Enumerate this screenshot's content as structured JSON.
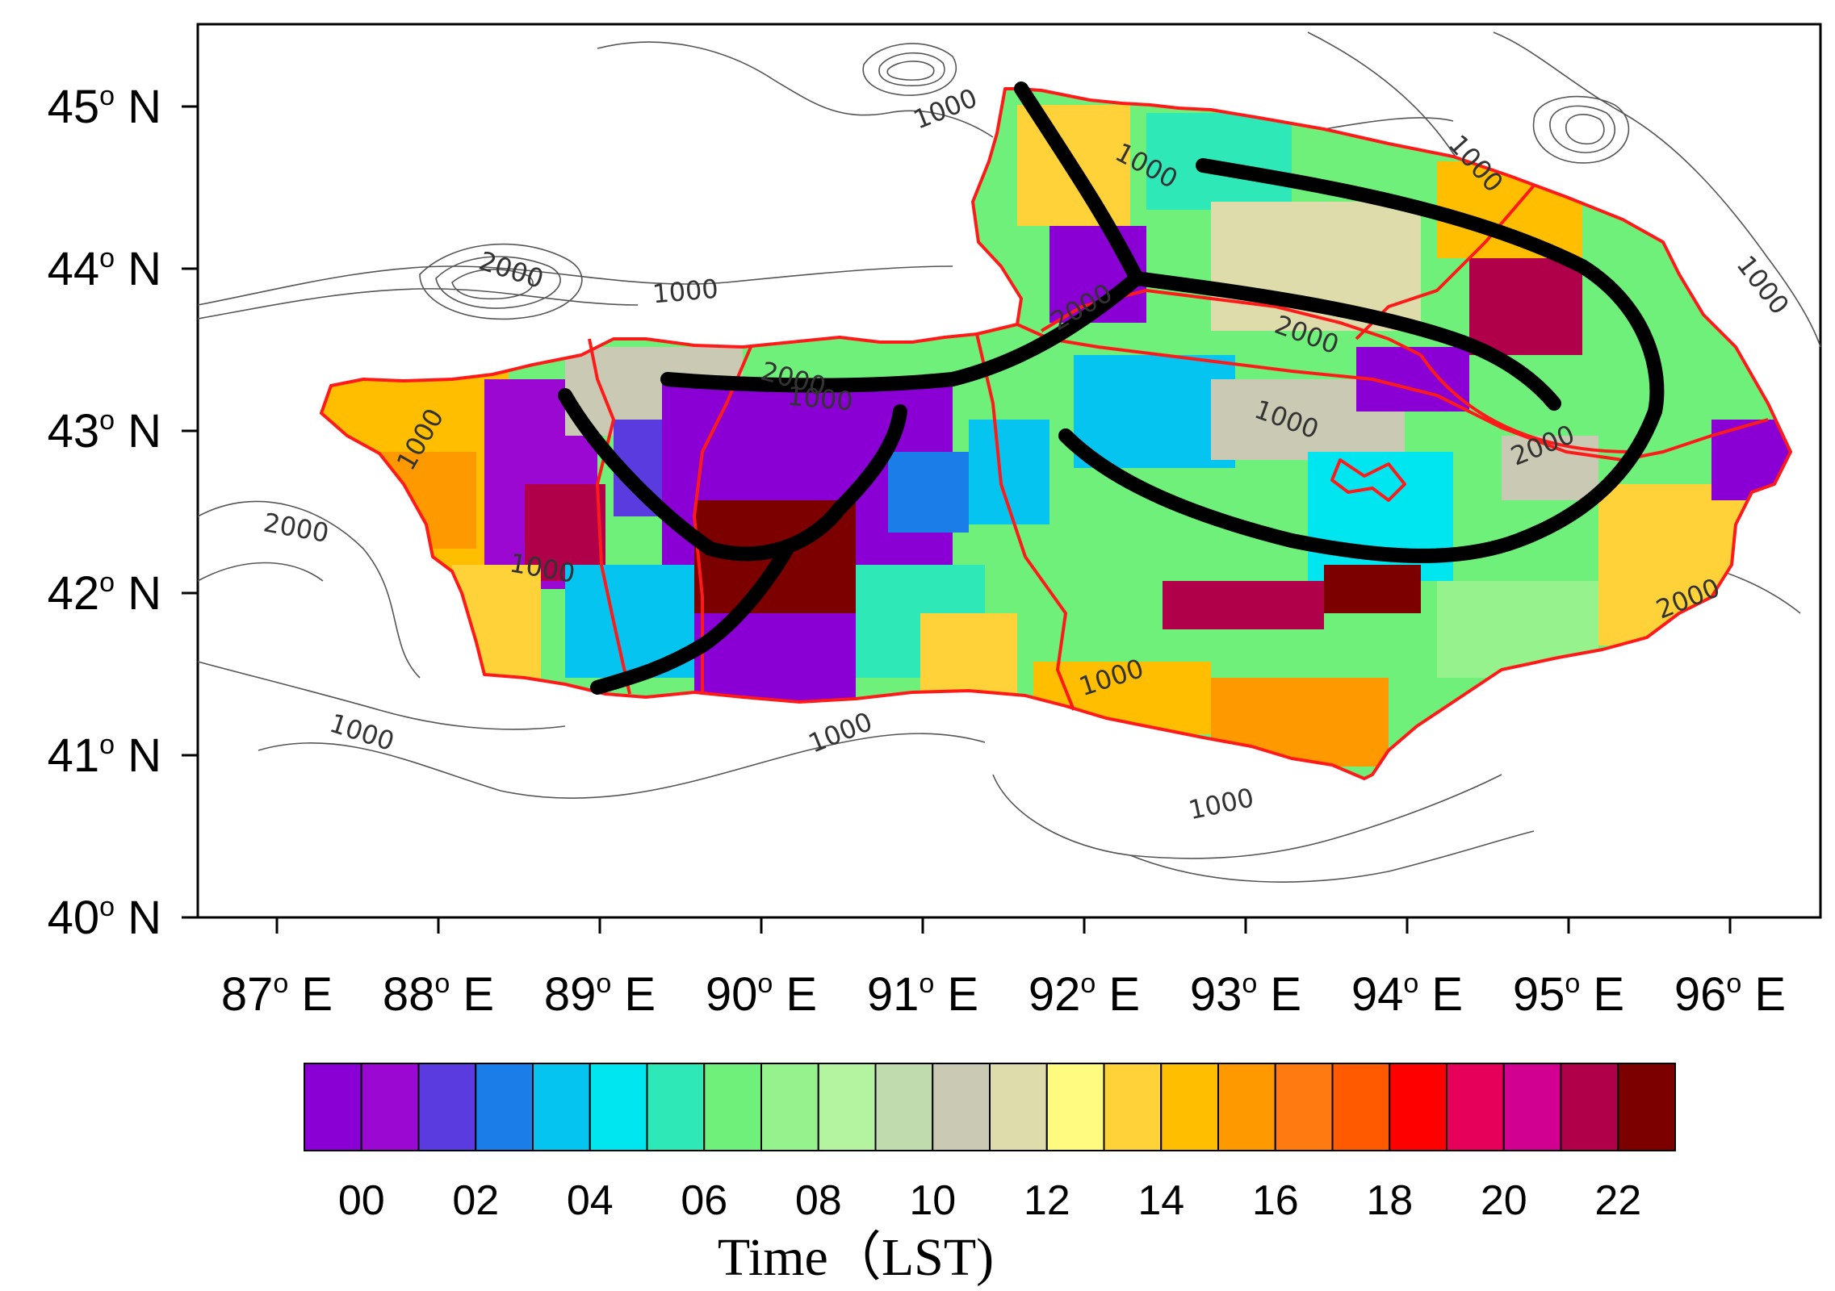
{
  "y_axis_labels": [
    {
      "deg": "45",
      "dir": "N"
    },
    {
      "deg": "44",
      "dir": "N"
    },
    {
      "deg": "43",
      "dir": "N"
    },
    {
      "deg": "42",
      "dir": "N"
    },
    {
      "deg": "41",
      "dir": "N"
    },
    {
      "deg": "40",
      "dir": "N"
    }
  ],
  "x_axis_labels": [
    {
      "deg": "87",
      "dir": "E"
    },
    {
      "deg": "88",
      "dir": "E"
    },
    {
      "deg": "89",
      "dir": "E"
    },
    {
      "deg": "90",
      "dir": "E"
    },
    {
      "deg": "91",
      "dir": "E"
    },
    {
      "deg": "92",
      "dir": "E"
    },
    {
      "deg": "93",
      "dir": "E"
    },
    {
      "deg": "94",
      "dir": "E"
    },
    {
      "deg": "95",
      "dir": "E"
    },
    {
      "deg": "96",
      "dir": "E"
    }
  ],
  "degree_mark": "o",
  "contour_labels": [
    "1000",
    "1000",
    "1000",
    "1000",
    "1000",
    "1000",
    "1000",
    "1000",
    "1000",
    "1000",
    "1000",
    "1000",
    "1000",
    "2000",
    "2000",
    "2000",
    "2000",
    "2000",
    "2000",
    "2000"
  ],
  "colorbar": {
    "colors": [
      "#8a00d4",
      "#9b08d2",
      "#5a3be0",
      "#1a7de8",
      "#05c5f0",
      "#00e6f0",
      "#2fe8b8",
      "#6ff07a",
      "#96f28c",
      "#b4f4a0",
      "#c0dcae",
      "#cacab4",
      "#dedcaa",
      "#fffa80",
      "#ffd23a",
      "#ffbf00",
      "#ff9900",
      "#ff7a10",
      "#ff5a00",
      "#ff0000",
      "#e6005a",
      "#d20090",
      "#b0004a",
      "#7c0000"
    ],
    "tick_labels": [
      "00",
      "02",
      "04",
      "06",
      "08",
      "10",
      "12",
      "14",
      "16",
      "18",
      "20",
      "22"
    ],
    "title": "Time（LST)"
  },
  "colors": {
    "boundary": "#ff1a1a",
    "front_lines": "#000000",
    "contours": "#555555"
  }
}
